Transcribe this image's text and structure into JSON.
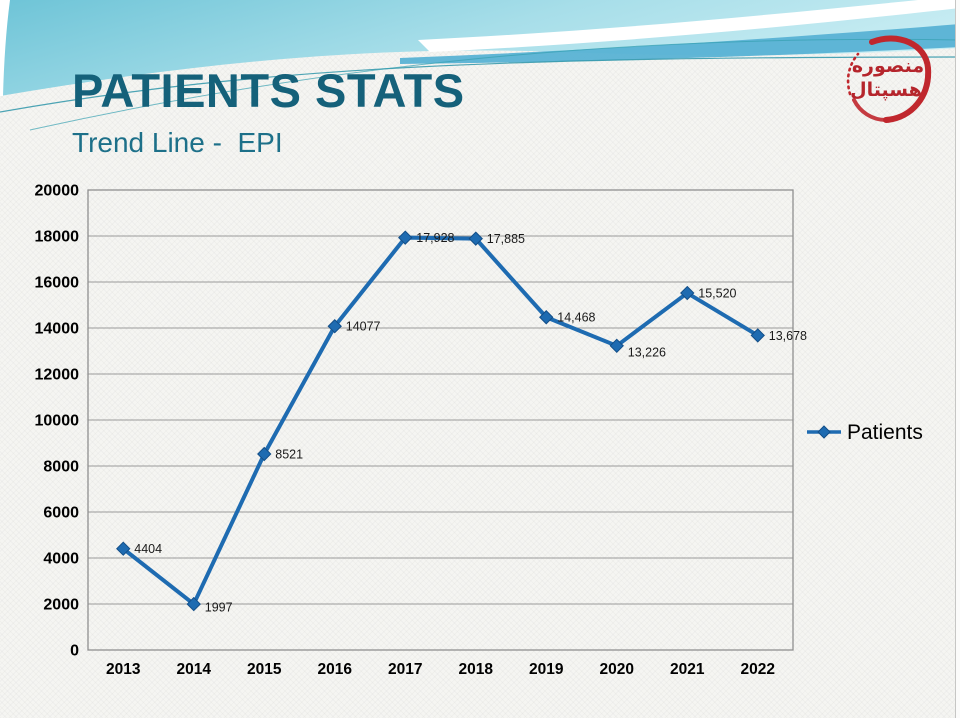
{
  "slide": {
    "title": "PATIENTS STATS",
    "subtitle": "Trend Line -  EPI"
  },
  "logo": {
    "line1": "منصوره",
    "line2": "هسپتال"
  },
  "chart_data": {
    "type": "line",
    "title": "",
    "xlabel": "",
    "ylabel": "",
    "categories": [
      "2013",
      "2014",
      "2015",
      "2016",
      "2017",
      "2018",
      "2019",
      "2020",
      "2021",
      "2022"
    ],
    "series": [
      {
        "name": "Patients",
        "values": [
          4404,
          1997,
          8521,
          14077,
          17928,
          17885,
          14468,
          13226,
          15520,
          13678
        ],
        "labels": [
          "4404",
          "1997",
          "8521",
          "14077",
          "17,928",
          "17,885",
          "14,468",
          "13,226",
          "15,520",
          "13,678"
        ],
        "label_dy": [
          0,
          3,
          0,
          0,
          0,
          0,
          0,
          6,
          0,
          0
        ],
        "color": "#1E6BB1"
      }
    ],
    "ylim": [
      0,
      20000
    ],
    "ytick_step": 2000,
    "grid": true,
    "legend": {
      "label": "Patients",
      "position": "right"
    }
  },
  "colors": {
    "title": "#15617A",
    "subtitle": "#1D7089",
    "line": "#1E6BB1",
    "marker_edge": "#134E87",
    "grid": "#9A9A9A",
    "plot_border": "#8F8F8F",
    "band_blue": "#58B2D4",
    "band_cyan_dark": "#6EC4D7",
    "band_cyan_light": "#C9EDF3",
    "thin_line_teal": "#2E95A9",
    "logo_red": "#C0272D",
    "label_text": "#1a1a1a"
  }
}
